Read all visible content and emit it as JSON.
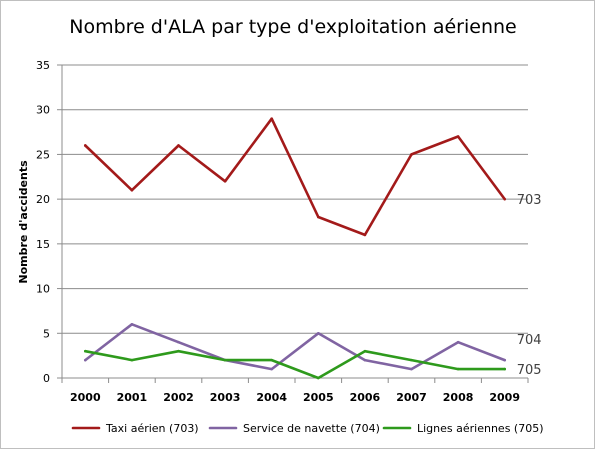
{
  "chart_data": {
    "type": "line",
    "title": "Nombre d'ALA par type d'exploitation aérienne",
    "xlabel": "",
    "ylabel": "Nombre d'accidents",
    "categories": [
      "2000",
      "2001",
      "2002",
      "2003",
      "2004",
      "2005",
      "2006",
      "2007",
      "2008",
      "2009"
    ],
    "ylim": [
      0,
      35
    ],
    "yticks": [
      "0",
      "5",
      "10",
      "15",
      "20",
      "25",
      "30",
      "35"
    ],
    "grid": true,
    "legend": "bottom",
    "series": [
      {
        "name": "Taxi aérien (703)",
        "end_label": "703",
        "color": "#a31a1a",
        "values": [
          26,
          21,
          26,
          22,
          29,
          18,
          16,
          25,
          27,
          20
        ]
      },
      {
        "name": "Service de navette (704)",
        "end_label": "704",
        "color": "#8064a2",
        "values": [
          2,
          6,
          4,
          2,
          1,
          5,
          2,
          1,
          4,
          2
        ]
      },
      {
        "name": "Lignes aériennes (705)",
        "end_label": "705",
        "color": "#2e9a1c",
        "values": [
          3,
          2,
          3,
          2,
          2,
          0,
          3,
          2,
          1,
          1
        ]
      }
    ]
  }
}
